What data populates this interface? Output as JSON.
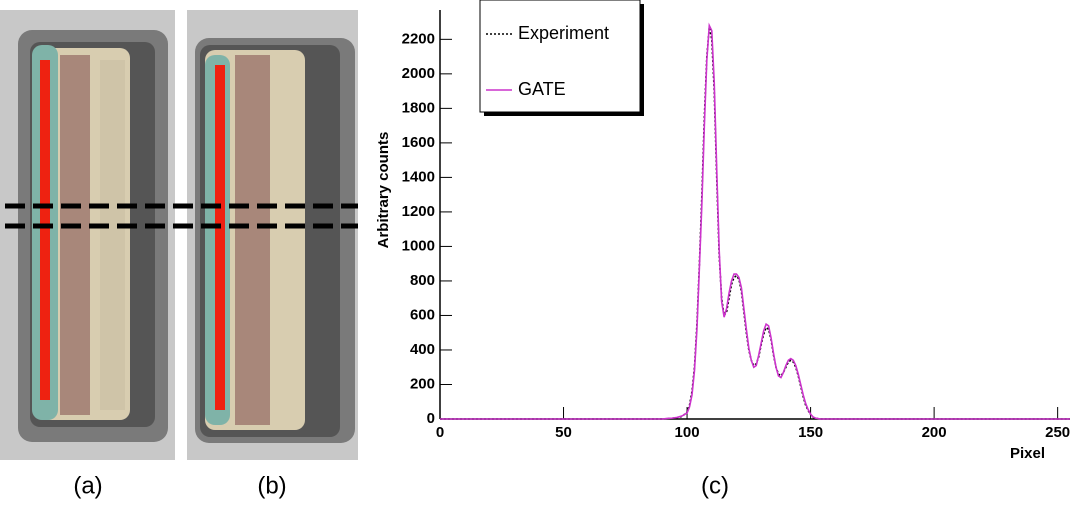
{
  "panel_labels": [
    "(a)",
    "(b)",
    "(c)"
  ],
  "chart_data": {
    "type": "line",
    "step": true,
    "xlabel": "Pixel",
    "ylabel": "Arbitrary counts",
    "xlim": [
      0,
      255
    ],
    "ylim": [
      0,
      2370
    ],
    "xticks": [
      0,
      50,
      100,
      150,
      200,
      250
    ],
    "yticks": [
      0,
      200,
      400,
      600,
      800,
      1000,
      1200,
      1400,
      1600,
      1800,
      2000,
      2200
    ],
    "legend": "top-left",
    "x": [
      0,
      90,
      92,
      94,
      96,
      98,
      100,
      101,
      102,
      103,
      104,
      105,
      106,
      107,
      108,
      109,
      110,
      111,
      112,
      113,
      114,
      115,
      116,
      117,
      118,
      119,
      120,
      121,
      122,
      123,
      124,
      125,
      126,
      127,
      128,
      129,
      130,
      131,
      132,
      133,
      134,
      135,
      136,
      137,
      138,
      139,
      140,
      141,
      142,
      143,
      144,
      145,
      146,
      147,
      148,
      149,
      150,
      151,
      152,
      154,
      156,
      255
    ],
    "series": [
      {
        "name": "Experiment",
        "color": "#000000",
        "dash": true,
        "values": [
          0,
          0,
          2,
          4,
          8,
          15,
          40,
          80,
          160,
          300,
          550,
          900,
          1300,
          1750,
          2100,
          2270,
          2200,
          1900,
          1400,
          950,
          700,
          600,
          620,
          700,
          780,
          820,
          830,
          810,
          740,
          620,
          500,
          400,
          340,
          310,
          320,
          360,
          430,
          490,
          530,
          520,
          460,
          370,
          300,
          260,
          250,
          270,
          300,
          330,
          340,
          330,
          300,
          250,
          190,
          130,
          80,
          50,
          25,
          10,
          4,
          0,
          0,
          0
        ]
      },
      {
        "name": "GATE",
        "color": "#cc33cc",
        "dash": false,
        "values": [
          0,
          0,
          3,
          5,
          9,
          18,
          35,
          70,
          140,
          280,
          520,
          880,
          1250,
          1700,
          2080,
          2280,
          2250,
          1950,
          1450,
          980,
          680,
          590,
          640,
          730,
          800,
          840,
          840,
          820,
          760,
          640,
          520,
          410,
          340,
          300,
          310,
          370,
          440,
          510,
          550,
          540,
          470,
          380,
          300,
          250,
          240,
          270,
          310,
          340,
          350,
          340,
          310,
          260,
          200,
          140,
          90,
          55,
          28,
          12,
          5,
          0,
          0,
          0
        ]
      }
    ]
  }
}
